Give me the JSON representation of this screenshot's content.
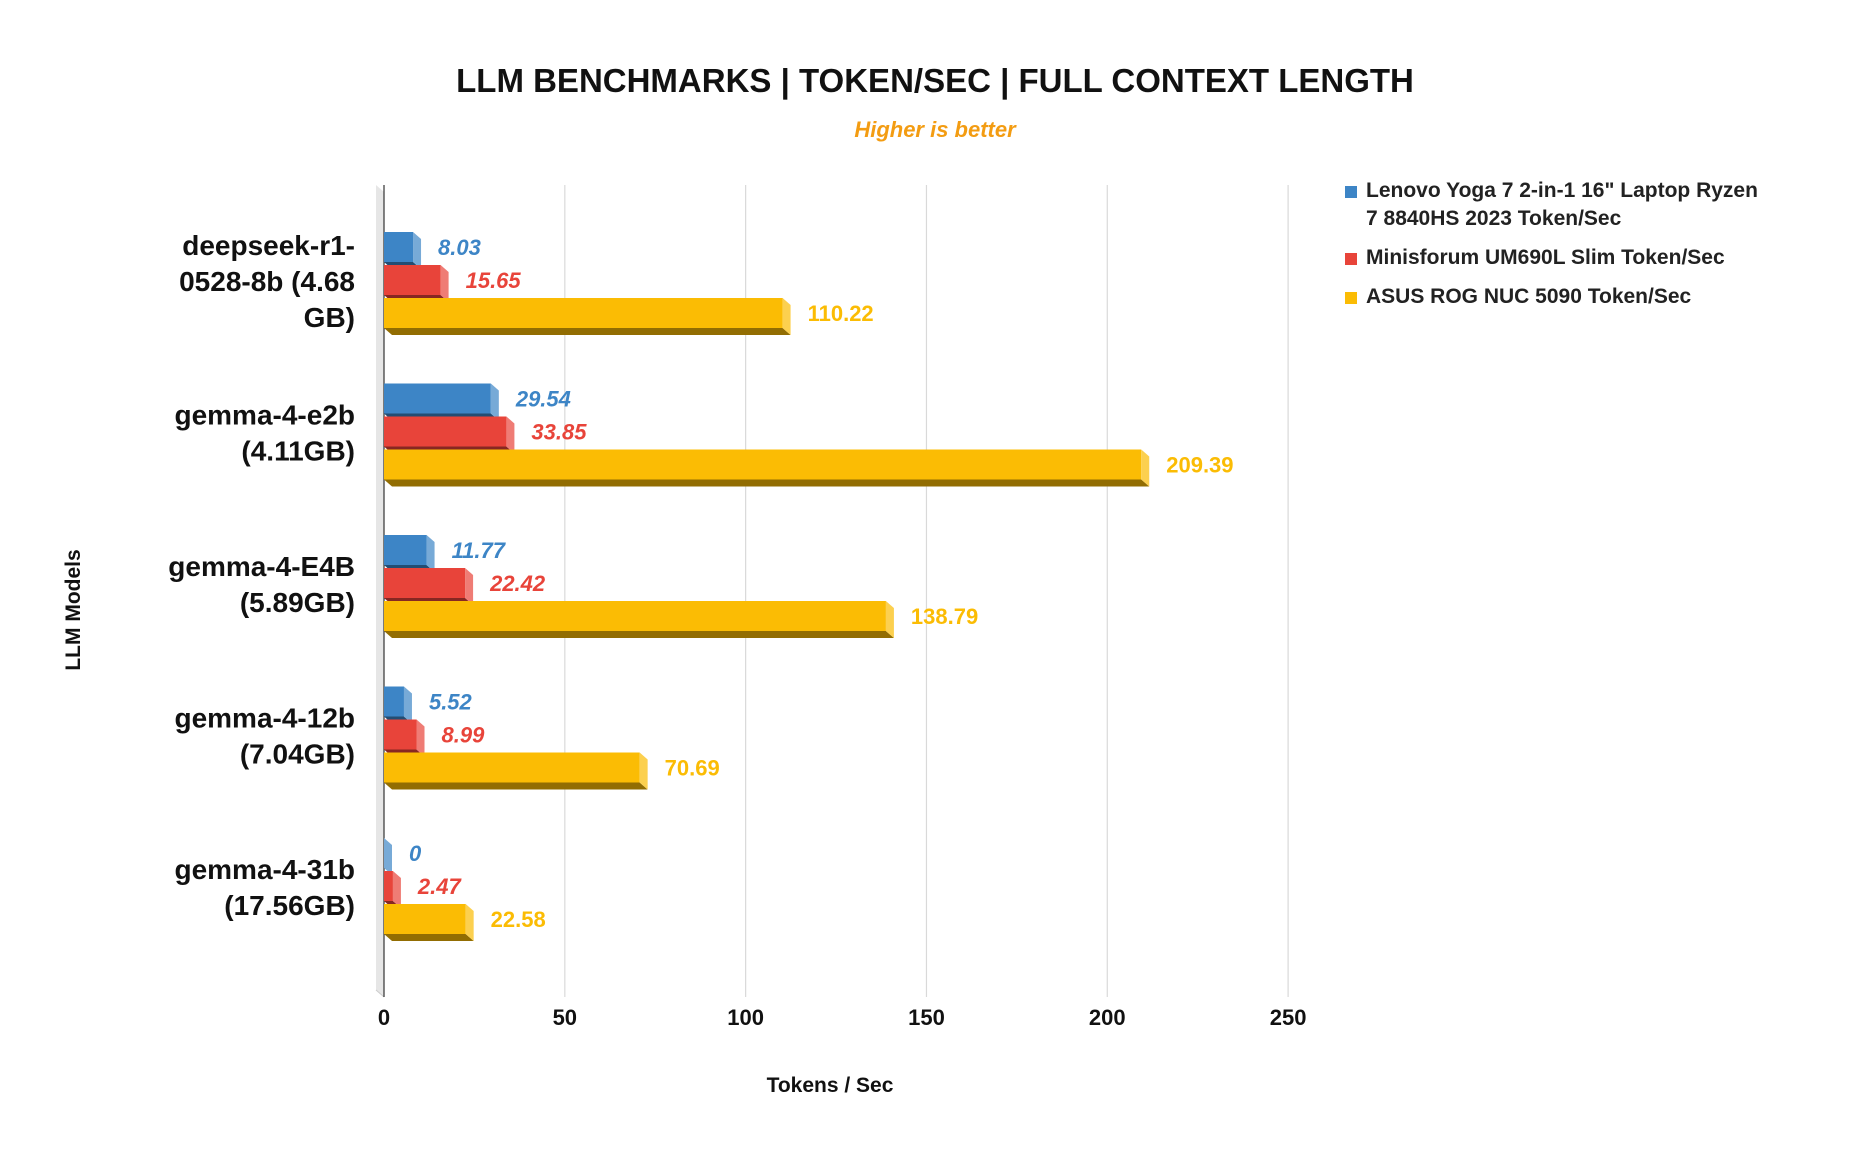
{
  "chart_data": {
    "type": "bar",
    "orientation": "horizontal",
    "title": "LLM BENCHMARKS | TOKEN/SEC | FULL CONTEXT LENGTH",
    "subtitle": "Higher is better",
    "subtitle_color": "#F39C12",
    "xlabel": "Tokens / Sec",
    "ylabel": "LLM Models",
    "xlim": [
      0,
      250
    ],
    "xticks": [
      0,
      50,
      100,
      150,
      200,
      250
    ],
    "grid": true,
    "legend_position": "right",
    "categories": [
      [
        "deepseek-r1-",
        "0528-8b (4.68",
        "GB)"
      ],
      [
        "gemma-4-e2b",
        "(4.11GB)"
      ],
      [
        "gemma-4-E4B",
        "(5.89GB)"
      ],
      [
        "gemma-4-12b",
        "(7.04GB)"
      ],
      [
        "gemma-4-31b",
        "(17.56GB)"
      ]
    ],
    "series": [
      {
        "name_lines": [
          "Lenovo Yoga 7 2-in-1 16\" Laptop Ryzen",
          "7 8840HS 2023 Token/Sec"
        ],
        "color": "#3D85C6",
        "label_italic": true,
        "values": [
          8.03,
          29.54,
          11.77,
          5.52,
          0
        ]
      },
      {
        "name_lines": [
          "Minisforum UM690L Slim Token/Sec"
        ],
        "color": "#E8443A",
        "label_italic": true,
        "values": [
          15.65,
          33.85,
          22.42,
          8.99,
          2.47
        ]
      },
      {
        "name_lines": [
          "ASUS ROG NUC 5090 Token/Sec"
        ],
        "color": "#FBBC04",
        "label_italic": false,
        "values": [
          110.22,
          209.39,
          138.79,
          70.69,
          22.58
        ]
      }
    ]
  }
}
